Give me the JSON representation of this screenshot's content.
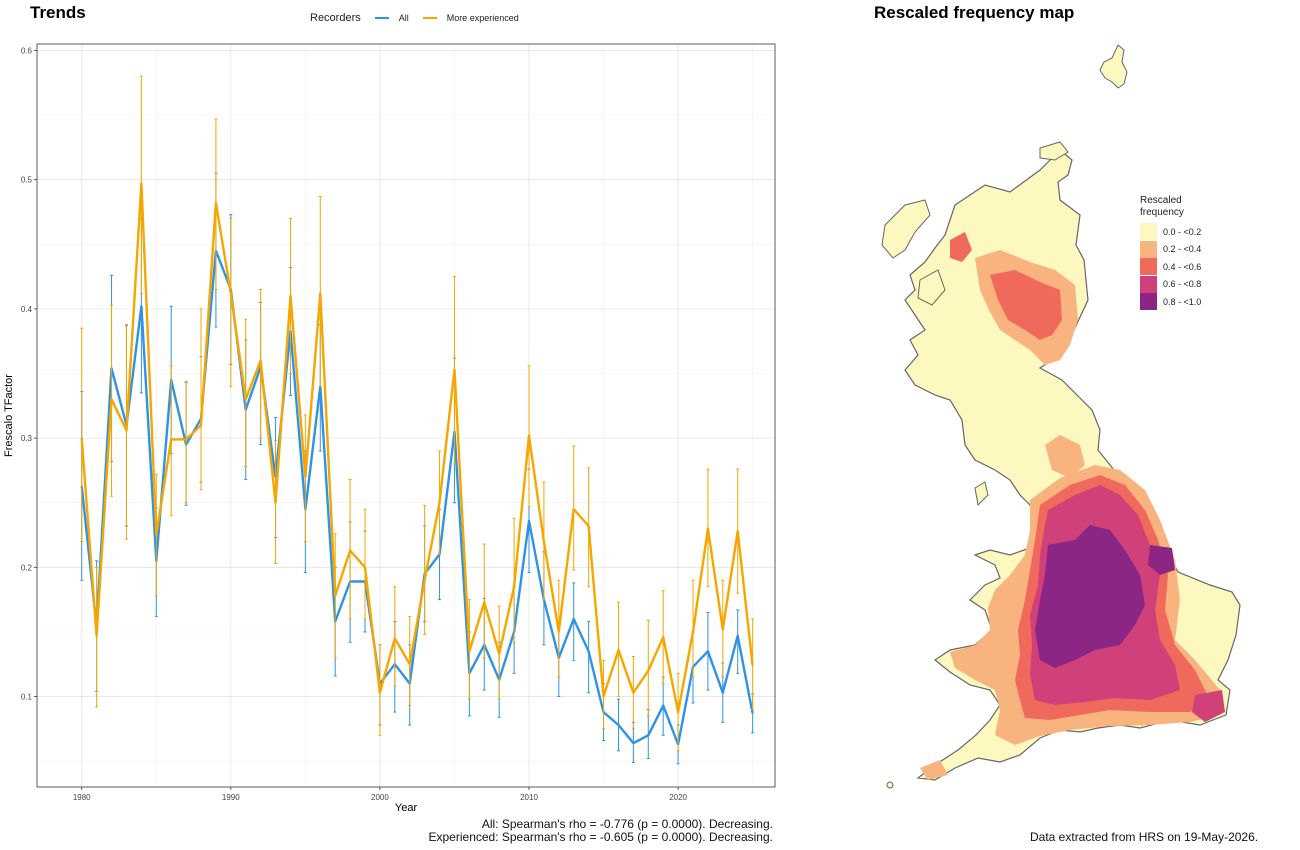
{
  "trends": {
    "title": "Trends"
  },
  "legend": {
    "title": "Recorders",
    "items": [
      {
        "label": "All",
        "color": "#2e93e6"
      },
      {
        "label": "More experienced",
        "color": "#f5a600"
      }
    ]
  },
  "stats": {
    "line1": "All: Spearman's rho = -0.776 (p = 0.0000). Decreasing.",
    "line2": "Experienced: Spearman's rho = -0.605 (p = 0.0000). Decreasing."
  },
  "map": {
    "title": "Rescaled frequency map",
    "legend_title_1": "Rescaled",
    "legend_title_2": "frequency",
    "classes": [
      {
        "label": "0.0 - <0.2",
        "color": "#fcf8bf"
      },
      {
        "label": "0.2 - <0.4",
        "color": "#f9b37f"
      },
      {
        "label": "0.4 - <0.6",
        "color": "#ef6a5c"
      },
      {
        "label": "0.6 - <0.8",
        "color": "#cf4178"
      },
      {
        "label": "0.8 - <1.0",
        "color": "#8b2684"
      }
    ]
  },
  "credit": "Data extracted from HRS on 19-May-2026.",
  "chart_data": {
    "type": "line",
    "xlabel": "Year",
    "ylabel": "Frescalo TFactor",
    "xlim": [
      1977,
      2026.5
    ],
    "ylim": [
      0.03,
      0.605
    ],
    "xticks": [
      1980,
      1990,
      2000,
      2010,
      2020
    ],
    "yticks": [
      0.1,
      0.2,
      0.3,
      0.4,
      0.5,
      0.6
    ],
    "grid": true,
    "legend_position": "top",
    "x": [
      1980,
      1981,
      1982,
      1983,
      1984,
      1985,
      1986,
      1987,
      1988,
      1989,
      1990,
      1991,
      1992,
      1993,
      1994,
      1995,
      1996,
      1997,
      1998,
      1999,
      2000,
      2001,
      2002,
      2003,
      2004,
      2005,
      2006,
      2007,
      2008,
      2009,
      2010,
      2011,
      2012,
      2013,
      2014,
      2015,
      2016,
      2017,
      2018,
      2019,
      2020,
      2021,
      2022,
      2023,
      2024,
      2025
    ],
    "series": [
      {
        "name": "All",
        "color": "#2e93e6",
        "values": [
          0.263,
          0.154,
          0.354,
          0.31,
          0.402,
          0.205,
          0.345,
          0.295,
          0.315,
          0.445,
          0.415,
          0.322,
          0.355,
          0.27,
          0.383,
          0.245,
          0.34,
          0.158,
          0.189,
          0.189,
          0.11,
          0.125,
          0.11,
          0.195,
          0.21,
          0.305,
          0.118,
          0.14,
          0.113,
          0.15,
          0.236,
          0.175,
          0.13,
          0.16,
          0.135,
          0.088,
          0.078,
          0.064,
          0.07,
          0.093,
          0.063,
          0.123,
          0.135,
          0.103,
          0.147,
          0.087
        ],
        "lower": [
          0.19,
          0.104,
          0.282,
          0.232,
          0.335,
          0.162,
          0.288,
          0.248,
          0.266,
          0.386,
          0.357,
          0.268,
          0.295,
          0.223,
          0.333,
          0.196,
          0.29,
          0.116,
          0.142,
          0.15,
          0.078,
          0.088,
          0.078,
          0.158,
          0.175,
          0.25,
          0.085,
          0.105,
          0.084,
          0.118,
          0.196,
          0.14,
          0.1,
          0.128,
          0.103,
          0.066,
          0.058,
          0.049,
          0.052,
          0.07,
          0.048,
          0.095,
          0.105,
          0.08,
          0.118,
          0.072
        ],
        "upper": [
          0.336,
          0.205,
          0.426,
          0.387,
          0.47,
          0.246,
          0.402,
          0.343,
          0.363,
          0.505,
          0.473,
          0.376,
          0.405,
          0.316,
          0.432,
          0.29,
          0.388,
          0.2,
          0.235,
          0.228,
          0.14,
          0.158,
          0.14,
          0.232,
          0.245,
          0.362,
          0.15,
          0.176,
          0.142,
          0.185,
          0.276,
          0.212,
          0.158,
          0.188,
          0.158,
          0.11,
          0.098,
          0.08,
          0.09,
          0.115,
          0.078,
          0.15,
          0.165,
          0.126,
          0.167,
          0.102
        ]
      },
      {
        "name": "More experienced",
        "color": "#f5a600",
        "values": [
          0.3,
          0.147,
          0.33,
          0.306,
          0.497,
          0.225,
          0.299,
          0.299,
          0.31,
          0.482,
          0.412,
          0.33,
          0.36,
          0.25,
          0.41,
          0.27,
          0.412,
          0.178,
          0.213,
          0.2,
          0.103,
          0.145,
          0.125,
          0.19,
          0.25,
          0.353,
          0.135,
          0.173,
          0.133,
          0.185,
          0.302,
          0.22,
          0.15,
          0.245,
          0.232,
          0.1,
          0.136,
          0.103,
          0.12,
          0.146,
          0.088,
          0.15,
          0.23,
          0.152,
          0.228,
          0.124
        ],
        "lower": [
          0.22,
          0.092,
          0.255,
          0.222,
          0.412,
          0.178,
          0.24,
          0.25,
          0.26,
          0.415,
          0.34,
          0.278,
          0.3,
          0.203,
          0.35,
          0.22,
          0.34,
          0.13,
          0.16,
          0.16,
          0.07,
          0.108,
          0.093,
          0.148,
          0.21,
          0.28,
          0.098,
          0.13,
          0.098,
          0.142,
          0.247,
          0.175,
          0.115,
          0.198,
          0.185,
          0.075,
          0.1,
          0.075,
          0.085,
          0.11,
          0.058,
          0.115,
          0.185,
          0.115,
          0.18,
          0.09
        ],
        "upper": [
          0.385,
          0.2,
          0.403,
          0.388,
          0.58,
          0.272,
          0.356,
          0.344,
          0.4,
          0.547,
          0.47,
          0.392,
          0.415,
          0.298,
          0.47,
          0.318,
          0.487,
          0.226,
          0.268,
          0.245,
          0.14,
          0.185,
          0.162,
          0.248,
          0.29,
          0.425,
          0.175,
          0.218,
          0.17,
          0.238,
          0.356,
          0.266,
          0.19,
          0.294,
          0.277,
          0.128,
          0.173,
          0.131,
          0.159,
          0.182,
          0.118,
          0.19,
          0.276,
          0.19,
          0.276,
          0.16
        ]
      }
    ]
  }
}
